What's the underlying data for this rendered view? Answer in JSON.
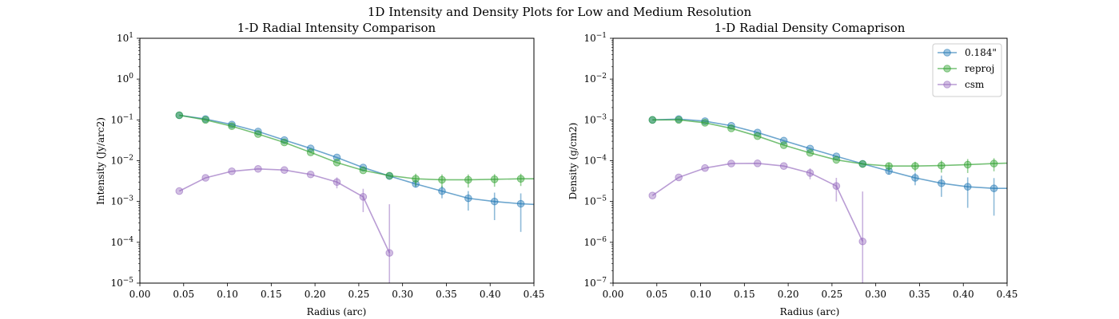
{
  "figure": {
    "suptitle": "1D Intensity and Density Plots for Low and Medium Resolution"
  },
  "colors": {
    "s184": "#1f77b4",
    "reproj": "#2ca02c",
    "csm": "#9467bd"
  },
  "chart_data": [
    {
      "type": "line",
      "title": "1-D Radial Intensity Comparison",
      "xlabel": "Radius (arc)",
      "ylabel": "Intensity (Jy/arc2)",
      "xlim": [
        0.0,
        0.45
      ],
      "ylim": [
        1e-05,
        10
      ],
      "yscale": "log",
      "grid": false,
      "xticks": [
        "0.00",
        "0.05",
        "0.10",
        "0.15",
        "0.20",
        "0.25",
        "0.30",
        "0.35",
        "0.40",
        "0.45"
      ],
      "yticks": [
        {
          "base": "10",
          "exp": "1"
        },
        {
          "base": "10",
          "exp": "0"
        },
        {
          "base": "10",
          "exp": "−1"
        },
        {
          "base": "10",
          "exp": "−2"
        },
        {
          "base": "10",
          "exp": "−3"
        },
        {
          "base": "10",
          "exp": "−4"
        },
        {
          "base": "10",
          "exp": "−5"
        }
      ],
      "series": [
        {
          "key": "s184",
          "x": [
            0.045,
            0.075,
            0.105,
            0.135,
            0.165,
            0.195,
            0.225,
            0.255,
            0.285,
            0.315,
            0.345,
            0.375,
            0.405,
            0.435
          ],
          "y": [
            0.13,
            0.105,
            0.077,
            0.052,
            0.032,
            0.02,
            0.012,
            0.0068,
            0.0042,
            0.0027,
            0.0018,
            0.0012,
            0.001,
            0.00088
          ],
          "err": [
            0.0,
            0.0,
            0.0,
            0.0,
            0.0,
            0.0,
            0.0,
            0.0,
            0.0,
            0.0005,
            0.0006,
            0.0006,
            0.00065,
            0.0007
          ],
          "line_end": {
            "x": 0.45,
            "y": 0.00085
          }
        },
        {
          "key": "reproj",
          "x": [
            0.045,
            0.075,
            0.105,
            0.135,
            0.165,
            0.195,
            0.225,
            0.255,
            0.285,
            0.315,
            0.345,
            0.375,
            0.405,
            0.435
          ],
          "y": [
            0.13,
            0.1,
            0.07,
            0.045,
            0.028,
            0.016,
            0.009,
            0.0058,
            0.0043,
            0.0036,
            0.0034,
            0.0034,
            0.0035,
            0.0036
          ],
          "err": [
            0.0,
            0.0,
            0.0,
            0.0,
            0.0,
            0.0,
            0.0,
            0.0,
            0.0,
            0.0012,
            0.0012,
            0.0012,
            0.0012,
            0.0012
          ],
          "line_end": {
            "x": 0.45,
            "y": 0.0036
          }
        },
        {
          "key": "csm",
          "x": [
            0.045,
            0.075,
            0.105,
            0.135,
            0.165,
            0.195,
            0.225,
            0.255,
            0.285
          ],
          "y": [
            0.0018,
            0.0038,
            0.0055,
            0.0063,
            0.0059,
            0.0046,
            0.003,
            0.0013,
            5.5e-05
          ],
          "err": [
            0.0,
            0.0,
            0.0,
            0.0,
            0.0,
            0.0,
            0.0009,
            0.00075,
            0.0008
          ]
        }
      ]
    },
    {
      "type": "line",
      "title": "1-D Radial Density Comaprison",
      "xlabel": "Radius (arc)",
      "ylabel": "Density (g/cm2)",
      "xlim": [
        0.0,
        0.45
      ],
      "ylim": [
        1e-07,
        0.1
      ],
      "yscale": "log",
      "grid": false,
      "legend_position": "top-right",
      "xticks": [
        "0.00",
        "0.05",
        "0.10",
        "0.15",
        "0.20",
        "0.25",
        "0.30",
        "0.35",
        "0.40",
        "0.45"
      ],
      "yticks": [
        {
          "base": "10",
          "exp": "−1"
        },
        {
          "base": "10",
          "exp": "−2"
        },
        {
          "base": "10",
          "exp": "−3"
        },
        {
          "base": "10",
          "exp": "−4"
        },
        {
          "base": "10",
          "exp": "−5"
        },
        {
          "base": "10",
          "exp": "−6"
        },
        {
          "base": "10",
          "exp": "−7"
        }
      ],
      "series": [
        {
          "key": "s184",
          "name": "0.184\"",
          "x": [
            0.045,
            0.075,
            0.105,
            0.135,
            0.165,
            0.195,
            0.225,
            0.255,
            0.285,
            0.315,
            0.345,
            0.375,
            0.405,
            0.435
          ],
          "y": [
            0.001,
            0.00105,
            0.00093,
            0.00072,
            0.00049,
            0.00031,
            0.000198,
            0.000128,
            8.4e-05,
            5.6e-05,
            3.8e-05,
            2.8e-05,
            2.3e-05,
            2.1e-05
          ],
          "err": [
            0.0,
            0.0,
            0.0,
            0.0,
            0.0,
            0.0,
            0.0,
            0.0,
            0.0,
            1e-05,
            1.3e-05,
            1.5e-05,
            1.6e-05,
            1.65e-05
          ],
          "line_end": {
            "x": 0.45,
            "y": 2.1e-05
          }
        },
        {
          "key": "reproj",
          "name": "reproj",
          "x": [
            0.045,
            0.075,
            0.105,
            0.135,
            0.165,
            0.195,
            0.225,
            0.255,
            0.285,
            0.315,
            0.345,
            0.375,
            0.405,
            0.435
          ],
          "y": [
            0.001,
            0.001,
            0.00085,
            0.00062,
            0.0004,
            0.00024,
            0.000155,
            0.000105,
            8.3e-05,
            7.4e-05,
            7.4e-05,
            7.6e-05,
            8e-05,
            8.5e-05
          ],
          "err": [
            0.0,
            0.0,
            0.0,
            0.0,
            0.0,
            0.0,
            0.0,
            0.0,
            0.0,
            1.5e-05,
            2e-05,
            2.5e-05,
            3e-05,
            3e-05
          ],
          "line_end": {
            "x": 0.45,
            "y": 8.7e-05
          }
        },
        {
          "key": "csm",
          "name": "csm",
          "x": [
            0.045,
            0.075,
            0.105,
            0.135,
            0.165,
            0.195,
            0.225,
            0.255,
            0.285
          ],
          "y": [
            1.4e-05,
            3.9e-05,
            6.6e-05,
            8.5e-05,
            8.6e-05,
            7.4e-05,
            5e-05,
            2.4e-05,
            1.05e-06
          ],
          "err": [
            0.0,
            0.0,
            0.0,
            0.0,
            0.0,
            0.0,
            1.5e-05,
            1.4e-05,
            1.65e-05
          ]
        }
      ]
    }
  ]
}
